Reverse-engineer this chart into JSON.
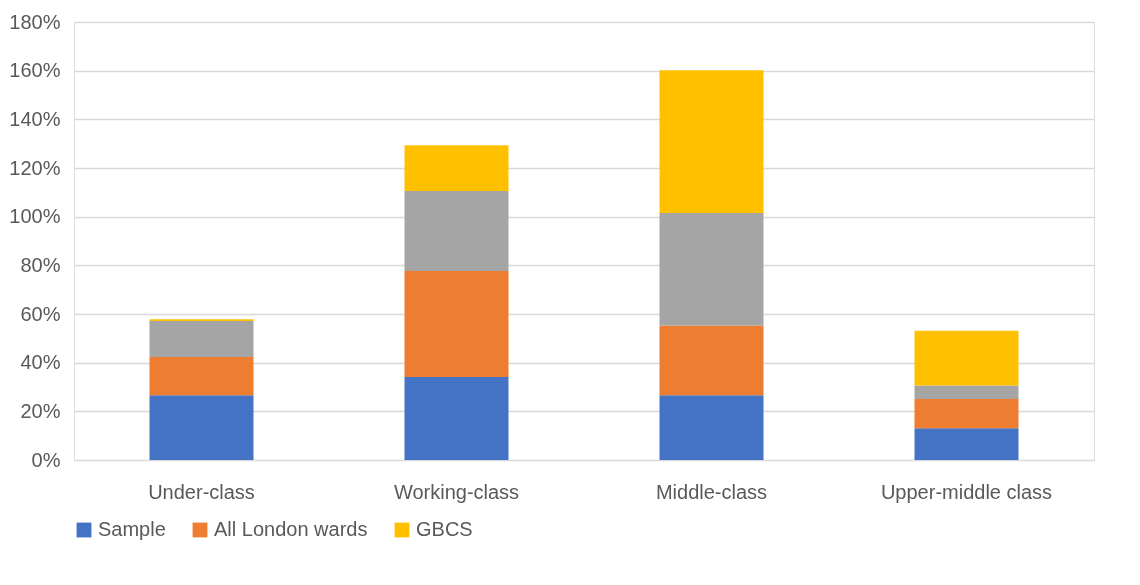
{
  "chart_data": {
    "type": "bar",
    "stacked": true,
    "categories": [
      "Under-class",
      "Working-class",
      "Middle-class",
      "Upper-middle class"
    ],
    "series": [
      {
        "name": "Sample",
        "color": "#4472c4",
        "values": [
          26.6,
          34.1,
          26.6,
          13.0
        ]
      },
      {
        "name": "All London wards",
        "color": "#ed7d31",
        "values": [
          15.7,
          43.6,
          28.7,
          12.1
        ]
      },
      {
        "color": "#a5a5a5",
        "values": [
          14.8,
          32.8,
          46.2,
          5.5
        ]
      },
      {
        "name": "GBCS",
        "color": "#ffc000",
        "values": [
          0.7,
          18.9,
          58.7,
          22.5
        ]
      }
    ],
    "ylim": [
      0,
      180
    ],
    "yticks": [
      {
        "value": 0,
        "label": "0%"
      },
      {
        "value": 20,
        "label": "20%"
      },
      {
        "value": 40,
        "label": "40%"
      },
      {
        "value": 60,
        "label": "60%"
      },
      {
        "value": 80,
        "label": "80%"
      },
      {
        "value": 100,
        "label": "100%"
      },
      {
        "value": 120,
        "label": "120%"
      },
      {
        "value": 140,
        "label": "140%"
      },
      {
        "value": 160,
        "label": "160%"
      },
      {
        "value": 180,
        "label": "180%"
      }
    ],
    "grid": "y",
    "legend": "bottom"
  }
}
